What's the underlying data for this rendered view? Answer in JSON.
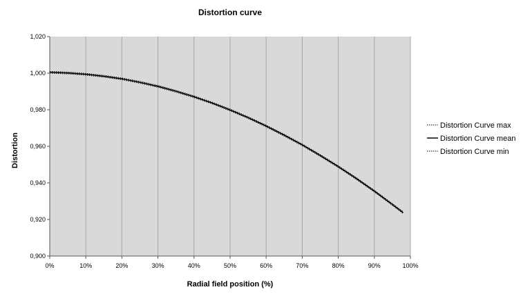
{
  "chart_data": {
    "type": "line",
    "title": "Distortion curve",
    "xlabel": "Radial field position (%)",
    "ylabel": "Distortion",
    "xlim": [
      0,
      100
    ],
    "ylim": [
      0.9,
      1.02
    ],
    "x_ticks": [
      "0%",
      "10%",
      "20%",
      "30%",
      "40%",
      "50%",
      "60%",
      "70%",
      "80%",
      "90%",
      "100%"
    ],
    "y_ticks": [
      "0,900",
      "0,920",
      "0,940",
      "0,960",
      "0,980",
      "1,000",
      "1,020"
    ],
    "grid": "vertical",
    "legend_position": "right",
    "x": [
      0,
      5,
      10,
      15,
      20,
      25,
      30,
      35,
      40,
      45,
      50,
      55,
      60,
      65,
      70,
      75,
      80,
      85,
      90,
      95,
      98
    ],
    "series": [
      {
        "name": "Distortion Curve max",
        "style": "dotted",
        "values": [
          1.001,
          1.0006,
          0.9999,
          0.9988,
          0.9974,
          0.9955,
          0.9933,
          0.9906,
          0.9876,
          0.9842,
          0.9804,
          0.9762,
          0.9716,
          0.9666,
          0.9613,
          0.9555,
          0.9494,
          0.9429,
          0.936,
          0.9287,
          0.9242
        ]
      },
      {
        "name": "Distortion Curve mean",
        "style": "solid",
        "values": [
          1.0005,
          1.0001,
          0.9994,
          0.9983,
          0.9969,
          0.995,
          0.9928,
          0.9901,
          0.9871,
          0.9837,
          0.9799,
          0.9757,
          0.9711,
          0.9661,
          0.9608,
          0.955,
          0.9489,
          0.9424,
          0.9355,
          0.9282,
          0.9237
        ]
      },
      {
        "name": "Distortion Curve min",
        "style": "dotted",
        "values": [
          1.0,
          0.9996,
          0.9989,
          0.9978,
          0.9964,
          0.9945,
          0.9923,
          0.9896,
          0.9866,
          0.9832,
          0.9794,
          0.9752,
          0.9706,
          0.9656,
          0.9603,
          0.9545,
          0.9484,
          0.9419,
          0.935,
          0.9277,
          0.9232
        ]
      }
    ],
    "colors": {
      "plot_background": "#d9d9d9",
      "gridline": "#a6a6a6",
      "line": "#000000"
    }
  }
}
